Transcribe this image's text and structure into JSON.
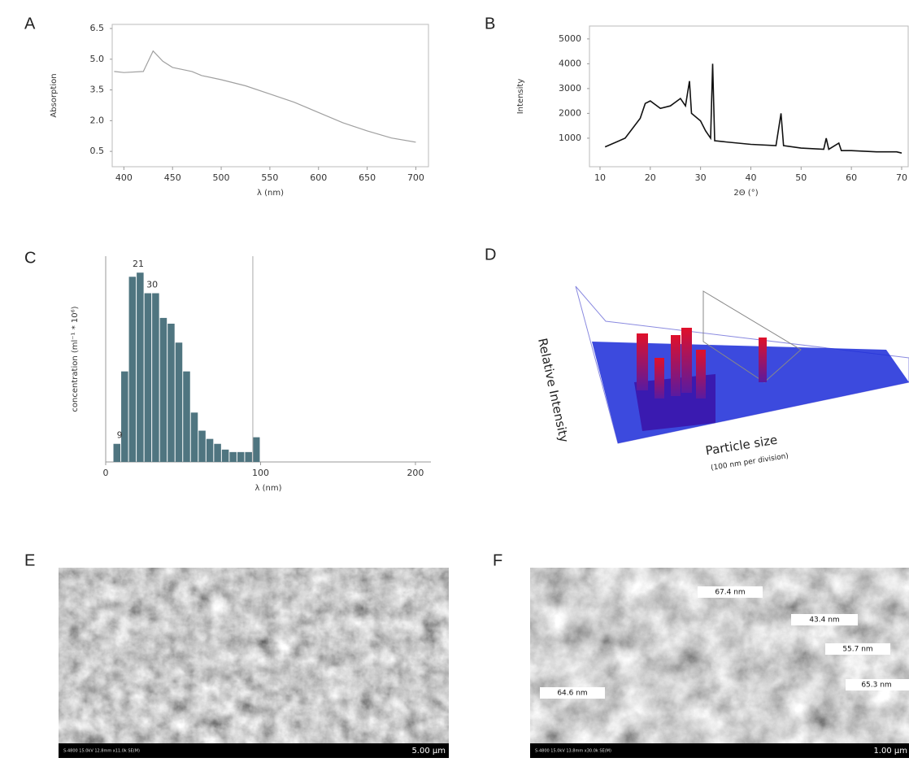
{
  "chart_data": [
    {
      "type": "line",
      "label": "A",
      "x_label": "λ (nm)",
      "y_label": "Absorption",
      "color": "#a0a0a0",
      "x": [
        390,
        400,
        420,
        425,
        430,
        440,
        450,
        460,
        470,
        480,
        500,
        525,
        550,
        575,
        600,
        625,
        650,
        675,
        700
      ],
      "values": [
        4.4,
        4.35,
        4.4,
        4.9,
        5.4,
        4.9,
        4.6,
        4.5,
        4.4,
        4.2,
        4.0,
        3.7,
        3.3,
        2.9,
        2.4,
        1.9,
        1.5,
        1.15,
        0.95
      ],
      "xlim": [
        388,
        713
      ],
      "ylim": [
        -0.25,
        6.7
      ],
      "xticks": [
        400,
        450,
        500,
        550,
        600,
        650,
        700
      ],
      "yticks": [
        {
          "value": 0.5,
          "label": "0.5"
        },
        {
          "value": 2.0,
          "label": "2.0"
        },
        {
          "value": 3.5,
          "label": "3.5"
        },
        {
          "value": 5.0,
          "label": "5.0"
        },
        {
          "value": 6.5,
          "label": "6.5"
        }
      ]
    },
    {
      "type": "line",
      "label": "B",
      "x_label": "2Θ (°)",
      "y_label": "Intensity",
      "color": "#111111",
      "x": [
        11,
        15,
        18,
        19,
        20,
        22,
        24,
        26,
        27,
        27.8,
        28.2,
        30,
        31,
        32,
        32.4,
        32.8,
        35,
        40,
        45,
        46,
        46.5,
        50,
        54.5,
        55,
        55.5,
        57.5,
        58,
        60,
        65,
        69,
        70
      ],
      "values": [
        650,
        1000,
        1800,
        2400,
        2500,
        2200,
        2300,
        2600,
        2300,
        3300,
        2000,
        1700,
        1300,
        1000,
        4000,
        900,
        850,
        750,
        700,
        2000,
        700,
        600,
        550,
        1000,
        550,
        800,
        500,
        500,
        450,
        450,
        400
      ],
      "xlim": [
        7.9,
        71.3
      ],
      "ylim": [
        -150,
        5520
      ],
      "xticks": [
        10,
        20,
        30,
        40,
        50,
        60,
        70
      ],
      "yticks": [
        1000,
        2000,
        3000,
        4000,
        5000
      ]
    },
    {
      "type": "histogram",
      "label": "C",
      "x_label": "λ (nm)",
      "y_label": "concentration (ml⁻¹ * 10⁶)",
      "color": "#4f7580",
      "bins": [
        5,
        10,
        15,
        20,
        25,
        30,
        35,
        40,
        45,
        50,
        55,
        60,
        65,
        70,
        75,
        80,
        85,
        90,
        95,
        100
      ],
      "values": [
        22,
        110,
        225,
        230,
        205,
        205,
        175,
        168,
        145,
        110,
        60,
        38,
        28,
        22,
        15,
        12,
        12,
        12,
        30
      ],
      "peaks": [
        21,
        30,
        9
      ],
      "vline": 95,
      "xlim": [
        0,
        210
      ],
      "ylim": [
        0,
        250
      ],
      "xticks": [
        0,
        100,
        200
      ]
    }
  ],
  "panels": [
    {
      "label": "D",
      "y_label": "Relative Intensity",
      "x_label": "Particle size",
      "x_sublabel": "(100 nm per division)"
    },
    {
      "label": "E",
      "info": "S-4800 15.0kV 12.8mm x11.0k SE(M)",
      "scale": "5.00 µm"
    },
    {
      "label": "F",
      "info": "S-4800 15.0kV 13.8mm x30.0k SE(M)",
      "scale": "1.00 µm",
      "annotations": [
        "67.4 nm",
        "43.4 nm",
        "55.7 nm",
        "65.3 nm",
        "64.6 nm"
      ]
    }
  ]
}
